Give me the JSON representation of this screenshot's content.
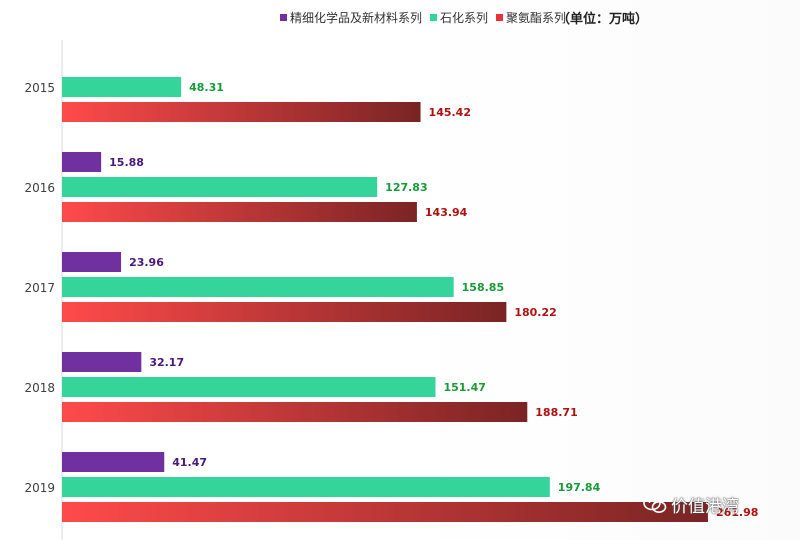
{
  "legend": {
    "items": [
      {
        "label": "精细化学品及新材料系列",
        "color": "#7030a0"
      },
      {
        "label": "石化系列",
        "color": "#35d49a"
      },
      {
        "label": "聚氨酯系列",
        "color": "#e8323c"
      }
    ],
    "unit": "（单位：万吨）"
  },
  "watermark": {
    "text": "价值港湾",
    "icon": "wechat-icon"
  },
  "chart_data": {
    "type": "bar",
    "orientation": "horizontal",
    "categories": [
      "2015",
      "2016",
      "2017",
      "2018",
      "2019"
    ],
    "series": [
      {
        "name": "精细化学品及新材料系列",
        "color": "#7030a0",
        "label_color": "#4a1a7a",
        "values": [
          null,
          15.88,
          23.96,
          32.17,
          41.47
        ],
        "labels": [
          "",
          "15.88",
          "23.96",
          "32.17",
          "41.47"
        ]
      },
      {
        "name": "石化系列",
        "color": "#35d49a",
        "label_color": "#1a9a3a",
        "values": [
          48.31,
          127.83,
          158.85,
          151.47,
          197.84
        ],
        "labels": [
          "48.31",
          "127.83",
          "158.85",
          "151.47",
          "197.84"
        ]
      },
      {
        "name": "聚氨酯系列",
        "gradient": [
          "#ff4a4a",
          "#7a2424"
        ],
        "label_color": "#b01010",
        "values": [
          145.42,
          143.94,
          180.22,
          188.71,
          261.98
        ],
        "labels": [
          "145.42",
          "143.94",
          "180.22",
          "188.71",
          "261.98"
        ]
      }
    ],
    "xlim": [
      0,
      262
    ],
    "grid": false,
    "legend_position": "top"
  }
}
